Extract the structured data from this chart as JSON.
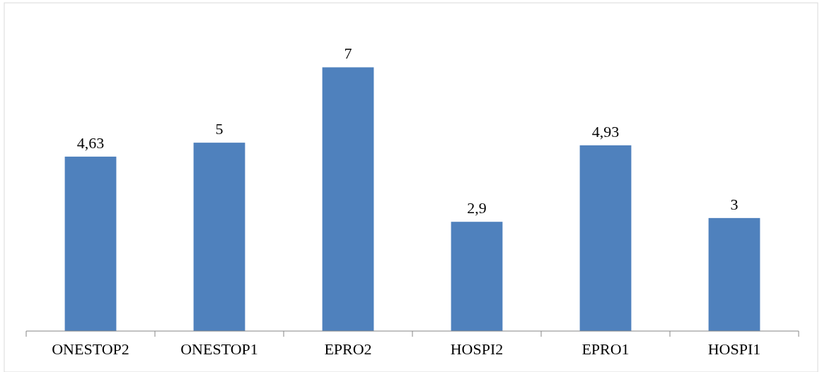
{
  "chart_data": {
    "type": "bar",
    "categories": [
      "ONESTOP2",
      "ONESTOP1",
      "EPRO2",
      "HOSPI2",
      "EPRO1",
      "HOSPI1"
    ],
    "values": [
      4.63,
      5,
      7,
      2.9,
      4.93,
      3
    ],
    "value_labels": [
      "4,63",
      "5",
      "7",
      "2,9",
      "4,93",
      "3"
    ],
    "color": "#4f81bd"
  }
}
